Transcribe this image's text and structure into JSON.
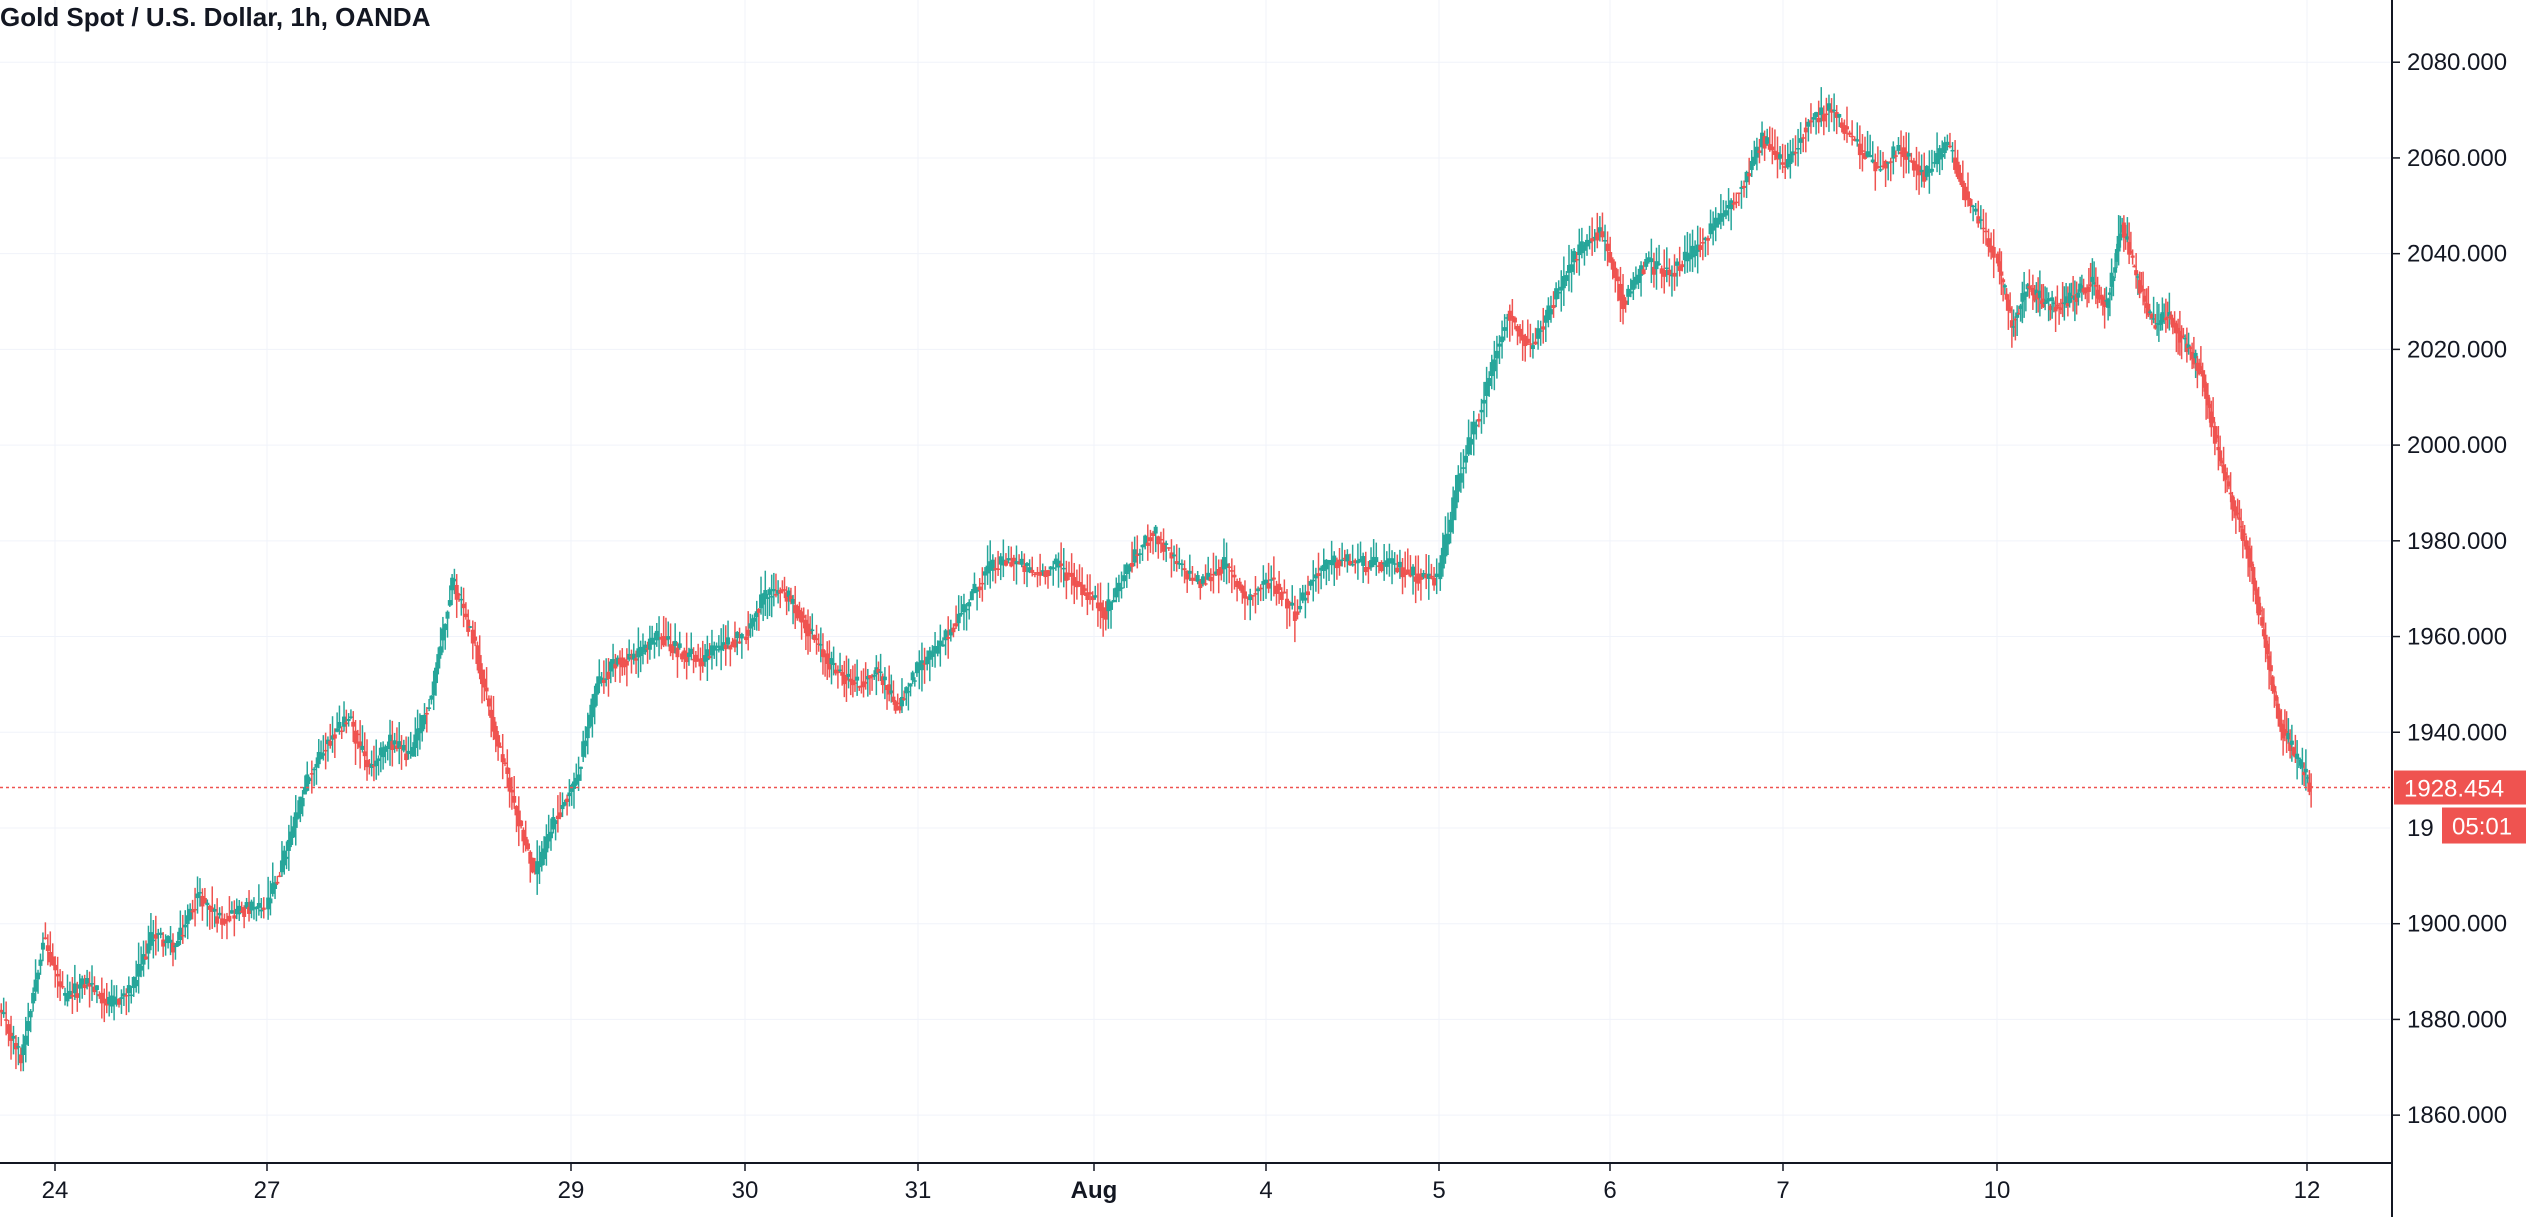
{
  "chart_data": {
    "type": "candlestick",
    "title": "Gold Spot / U.S. Dollar, 1h, OANDA",
    "x_tick_labels": [
      "24",
      "27",
      "29",
      "30",
      "31",
      "Aug",
      "4",
      "5",
      "6",
      "7",
      "10",
      "12"
    ],
    "y_tick_labels": [
      "1860.000",
      "1880.000",
      "1900.000",
      "1940.000",
      "1960.000",
      "1980.000",
      "2000.000",
      "2020.000",
      "2040.000",
      "2060.000",
      "2080.000"
    ],
    "y_ticks": [
      1860,
      1880,
      1900,
      1920,
      1940,
      1960,
      1980,
      2000,
      2020,
      2040,
      2060,
      2080
    ],
    "ylim": [
      1850,
      2093
    ],
    "grid": true,
    "last_price": 1928.454,
    "last_price_label": "1928.454",
    "countdown_label": "05:01",
    "hidden_tick_fragment": "19",
    "colors": {
      "up": "#26a69a",
      "down": "#ef5350",
      "grid": "#f0f3fa",
      "axis": "#131722",
      "text": "#131722"
    },
    "days": [
      {
        "label": "24",
        "path": [
          1882,
          1872,
          1897,
          1884,
          1888,
          1883,
          1886,
          1898,
          1895,
          1906,
          1901,
          1903,
          1903
        ]
      },
      {
        "label": "27",
        "path": [
          1903,
          1915,
          1930,
          1938,
          1943,
          1932,
          1938,
          1935,
          1948,
          1972,
          1960,
          1941,
          1925,
          1910,
          1922,
          1930,
          1950,
          1955,
          1956,
          1960,
          1957,
          1955,
          1958,
          1960
        ]
      },
      {
        "label": "30",
        "path": [
          1960,
          1968,
          1970,
          1964,
          1957,
          1952,
          1950,
          1953,
          1945,
          1953
        ]
      },
      {
        "label": "31",
        "path": [
          1953,
          1958,
          1966,
          1974,
          1976,
          1973,
          1975,
          1970,
          1965,
          1975,
          1982,
          1975,
          1971,
          1975,
          1968,
          1972,
          1965,
          1974,
          1976,
          1975,
          1975,
          1973,
          1972
        ]
      },
      {
        "label": "5",
        "path": [
          1972,
          1995,
          2010,
          2028,
          2020,
          2030,
          2040,
          2045,
          2030,
          2038,
          2036,
          2040,
          2046,
          2053,
          2064,
          2058,
          2068,
          2070,
          2063,
          2058,
          2062,
          2056,
          2063,
          2050,
          2040
        ]
      },
      {
        "label": "10",
        "path": [
          2040,
          2025,
          2033,
          2030,
          2029,
          2031,
          2034,
          2029,
          2046,
          2034,
          2025,
          2027,
          2021,
          2016,
          2000,
          1988,
          1978,
          1960,
          1942,
          1935,
          1928.454
        ]
      }
    ]
  }
}
